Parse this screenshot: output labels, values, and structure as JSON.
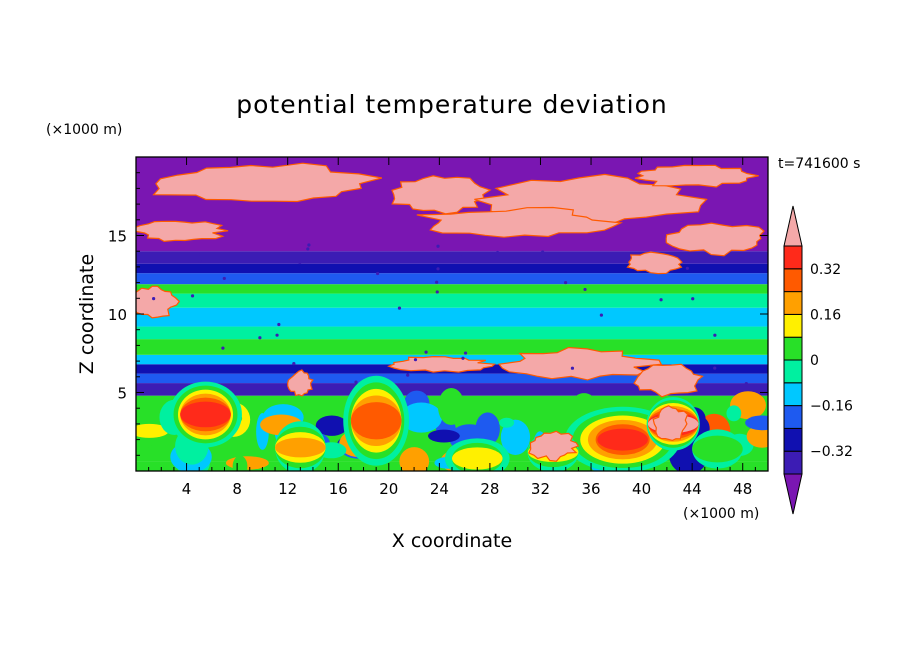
{
  "chart_data": {
    "type": "heatmap",
    "title": "potential temperature deviation",
    "xlabel": "X coordinate",
    "ylabel": "Z coordinate",
    "x_unit": "(×1000 m)",
    "y_unit": "(×1000 m)",
    "time_label": "t=741600 s",
    "xlim": [
      0,
      50
    ],
    "ylim": [
      0,
      20
    ],
    "x_ticks": [
      4,
      8,
      12,
      16,
      20,
      24,
      28,
      32,
      36,
      40,
      44,
      48
    ],
    "y_ticks": [
      5,
      10,
      15
    ],
    "colorbar": {
      "levels": [
        -0.4,
        -0.32,
        -0.24,
        -0.16,
        -0.08,
        0,
        0.08,
        0.16,
        0.24,
        0.32,
        0.4
      ],
      "tick_labels": [
        "0.32",
        "0.16",
        "0",
        "−0.16",
        "−0.32"
      ],
      "tick_values": [
        0.32,
        0.16,
        0,
        -0.16,
        -0.32
      ],
      "colors": [
        "#7a16b2",
        "#3c1cb4",
        "#1010b0",
        "#1e5af0",
        "#00c8ff",
        "#00f0a0",
        "#28e028",
        "#fff000",
        "#ffa000",
        "#ff5a00",
        "#ff2a1a",
        "#f4a8a8"
      ],
      "extend": "both"
    },
    "bands": [
      {
        "z": [
          0,
          0.6
        ],
        "value": 0.05
      },
      {
        "z": [
          0.6,
          4.8
        ],
        "value": 0.0
      },
      {
        "z": [
          4.8,
          5.6
        ],
        "value": -0.38
      },
      {
        "z": [
          5.6,
          6.2
        ],
        "value": -0.2
      },
      {
        "z": [
          6.2,
          6.8
        ],
        "value": -0.3
      },
      {
        "z": [
          6.8,
          7.4
        ],
        "value": -0.1
      },
      {
        "z": [
          7.4,
          8.4
        ],
        "value": 0.05
      },
      {
        "z": [
          8.4,
          9.2
        ],
        "value": -0.05
      },
      {
        "z": [
          9.2,
          10.4
        ],
        "value": -0.12
      },
      {
        "z": [
          10.4,
          11.3
        ],
        "value": -0.08
      },
      {
        "z": [
          11.3,
          11.9
        ],
        "value": 0.0
      },
      {
        "z": [
          11.9,
          12.6
        ],
        "value": -0.2
      },
      {
        "z": [
          12.6,
          13.2
        ],
        "value": -0.28
      },
      {
        "z": [
          13.2,
          14.0
        ],
        "value": -0.34
      },
      {
        "z": [
          14.0,
          20.0
        ],
        "value": -0.45
      }
    ],
    "warm_blobs": [
      {
        "x": 5.5,
        "z": 3.6,
        "rx": 2.2,
        "rz": 1.6,
        "value": 0.4
      },
      {
        "x": 19.0,
        "z": 3.2,
        "rx": 2.0,
        "rz": 2.2,
        "value": 0.32
      },
      {
        "x": 38.5,
        "z": 2.0,
        "rx": 3.5,
        "rz": 1.6,
        "value": 0.36
      },
      {
        "x": 42.5,
        "z": 3.0,
        "rx": 1.6,
        "rz": 1.3,
        "value": 0.45
      },
      {
        "x": 13.0,
        "z": 1.5,
        "rx": 1.5,
        "rz": 1.3,
        "value": 0.2
      },
      {
        "x": 27.0,
        "z": 0.8,
        "rx": 2.0,
        "rz": 1.0,
        "value": 0.18
      },
      {
        "x": 33.0,
        "z": 1.2,
        "rx": 1.6,
        "rz": 1.0,
        "value": 0.15
      },
      {
        "x": 46.0,
        "z": 1.4,
        "rx": 1.5,
        "rz": 1.0,
        "value": 0.1
      }
    ],
    "pink_regions": [
      {
        "x": 10,
        "z": 18.3,
        "rx": 9,
        "rz": 1.4
      },
      {
        "x": 24,
        "z": 17.6,
        "rx": 4,
        "rz": 1.2
      },
      {
        "x": 36,
        "z": 17.3,
        "rx": 9,
        "rz": 1.6
      },
      {
        "x": 44,
        "z": 18.8,
        "rx": 5,
        "rz": 0.7
      },
      {
        "x": 30,
        "z": 15.8,
        "rx": 8,
        "rz": 1.0
      },
      {
        "x": 3.5,
        "z": 15.3,
        "rx": 3.5,
        "rz": 0.7
      },
      {
        "x": 46,
        "z": 14.8,
        "rx": 4,
        "rz": 1.0
      },
      {
        "x": 41,
        "z": 13.3,
        "rx": 2.5,
        "rz": 0.7
      },
      {
        "x": 1.5,
        "z": 10.8,
        "rx": 1.8,
        "rz": 1.0
      },
      {
        "x": 35,
        "z": 6.8,
        "rx": 6,
        "rz": 1.0
      },
      {
        "x": 42,
        "z": 5.8,
        "rx": 3,
        "rz": 1.0
      },
      {
        "x": 24,
        "z": 6.8,
        "rx": 4,
        "rz": 0.5
      },
      {
        "x": 13,
        "z": 5.6,
        "rx": 1.0,
        "rz": 0.8
      },
      {
        "x": 33,
        "z": 1.6,
        "rx": 2,
        "rz": 0.9
      },
      {
        "x": 42.3,
        "z": 3.0,
        "rx": 1.4,
        "rz": 1.2
      }
    ]
  }
}
